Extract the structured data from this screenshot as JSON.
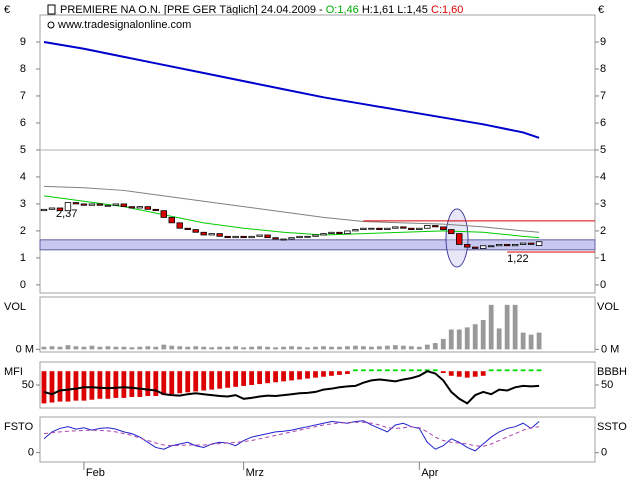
{
  "chart_data": {
    "type": "candlestick",
    "header": {
      "symbol": "PREMIERE NA O.N. [PRE GER  Täglich] 24.04.2009 - ",
      "open": "O:1,46",
      "high_low": " H:1,61 L:1,45 ",
      "close": "C:1,60",
      "open_color": "#00aa00",
      "close_color": "#dd0000"
    },
    "source": "www.tradesignalonline.com",
    "currency": "€",
    "xlim": [
      -0.5,
      69
    ],
    "xticks": [
      {
        "value": 5,
        "label": "Feb"
      },
      {
        "value": 25,
        "label": "Mrz"
      },
      {
        "value": 47,
        "label": "Apr"
      }
    ],
    "ylim": [
      -0.3,
      10
    ],
    "yticks": [
      0,
      1,
      2,
      3,
      4,
      5,
      6,
      7,
      8,
      9
    ],
    "up_color": "#ffffff",
    "down_color": "#dd0000",
    "open": [
      2.75,
      2.8,
      2.85,
      2.75,
      3.05,
      3.0,
      2.95,
      3.0,
      2.95,
      2.95,
      3.0,
      2.9,
      2.85,
      2.9,
      2.8,
      2.75,
      2.5,
      2.3,
      2.1,
      2.05,
      1.95,
      1.85,
      1.9,
      1.8,
      1.75,
      1.8,
      1.75,
      1.8,
      1.85,
      1.75,
      1.7,
      1.7,
      1.75,
      1.8,
      1.8,
      1.85,
      1.9,
      1.95,
      1.9,
      2.0,
      2.05,
      2.1,
      2.1,
      2.05,
      2.1,
      2.15,
      2.1,
      2.05,
      2.1,
      2.2,
      2.15,
      2.05,
      1.9,
      1.5,
      1.4,
      1.35,
      1.45,
      1.45,
      1.5,
      1.45,
      1.5,
      1.55,
      1.46
    ],
    "close": [
      2.8,
      2.85,
      2.75,
      3.05,
      3.0,
      2.95,
      3.0,
      2.95,
      2.95,
      3.0,
      2.9,
      2.85,
      2.9,
      2.8,
      2.75,
      2.5,
      2.3,
      2.1,
      2.05,
      1.95,
      1.85,
      1.9,
      1.8,
      1.75,
      1.8,
      1.75,
      1.8,
      1.85,
      1.75,
      1.7,
      1.7,
      1.75,
      1.8,
      1.8,
      1.85,
      1.9,
      1.95,
      1.9,
      2.0,
      2.05,
      2.1,
      2.1,
      2.05,
      2.1,
      2.15,
      2.1,
      2.05,
      2.1,
      2.2,
      2.15,
      2.05,
      1.9,
      1.5,
      1.4,
      1.35,
      1.45,
      1.45,
      1.5,
      1.45,
      1.5,
      1.55,
      1.5,
      1.6
    ],
    "moving_averages": [
      {
        "color": "#0000cc",
        "width": 2,
        "x": [
          0,
          5,
          10,
          15,
          20,
          25,
          30,
          35,
          40,
          45,
          50,
          55,
          60,
          62
        ],
        "values": [
          9.0,
          8.75,
          8.45,
          8.15,
          7.85,
          7.55,
          7.25,
          6.95,
          6.7,
          6.45,
          6.2,
          5.95,
          5.65,
          5.45
        ]
      },
      {
        "color": "#808080",
        "width": 1,
        "x": [
          0,
          5,
          10,
          15,
          20,
          25,
          30,
          35,
          40,
          45,
          50,
          55,
          60,
          62
        ],
        "values": [
          3.65,
          3.6,
          3.5,
          3.3,
          3.1,
          2.9,
          2.7,
          2.5,
          2.35,
          2.3,
          2.25,
          2.15,
          2.0,
          1.95
        ]
      },
      {
        "color": "#00cc00",
        "width": 1,
        "x": [
          0,
          5,
          10,
          15,
          20,
          25,
          30,
          35,
          40,
          45,
          50,
          55,
          60,
          62
        ],
        "values": [
          3.3,
          3.1,
          2.9,
          2.6,
          2.3,
          2.1,
          1.95,
          1.85,
          1.9,
          1.95,
          2.0,
          1.95,
          1.8,
          1.75
        ]
      }
    ],
    "reference_lines": [
      {
        "value": 5,
        "color": "#b0b0b0"
      }
    ],
    "band": {
      "range": [
        1.3,
        1.67
      ],
      "color": "#c8c8f0"
    },
    "levels": [
      {
        "value": 2.37,
        "label": "2,37",
        "color": "#dd0000",
        "from": 40
      },
      {
        "value": 1.22,
        "label": "1,22",
        "color": "#dd0000",
        "from": 58
      }
    ],
    "panels": [
      {
        "type": "bar",
        "label": "VOL",
        "right_label": "VOL",
        "color": "#999999",
        "ylim": [
          -0.05,
          1.0
        ],
        "yticks": [
          {
            "value": 0,
            "label": "0 M"
          }
        ],
        "values": [
          0.05,
          0.06,
          0.05,
          0.08,
          0.06,
          0.05,
          0.07,
          0.05,
          0.06,
          0.05,
          0.05,
          0.04,
          0.05,
          0.06,
          0.05,
          0.09,
          0.07,
          0.06,
          0.05,
          0.06,
          0.05,
          0.04,
          0.05,
          0.05,
          0.06,
          0.04,
          0.05,
          0.06,
          0.05,
          0.04,
          0.05,
          0.06,
          0.05,
          0.04,
          0.05,
          0.06,
          0.05,
          0.05,
          0.06,
          0.07,
          0.06,
          0.05,
          0.06,
          0.07,
          0.08,
          0.07,
          0.06,
          0.05,
          0.09,
          0.12,
          0.2,
          0.38,
          0.38,
          0.42,
          0.48,
          0.56,
          0.85,
          0.4,
          0.85,
          0.85,
          0.32,
          0.28,
          0.32
        ]
      },
      {
        "type": "histogram_line",
        "label": "MFI",
        "right_label": "BBBH",
        "ylim": [
          0,
          100
        ],
        "yticks": [
          50
        ],
        "histogram": {
          "ylim": [
            -40,
            10
          ],
          "pos_color": "#00dd00",
          "neg_color": "#dd0000",
          "values": [
            -35,
            -34,
            -33,
            -33,
            -32,
            -32,
            -31,
            -30,
            -30,
            -29,
            -29,
            -28,
            -28,
            -27,
            -27,
            -26,
            -25,
            -24,
            -23,
            -22,
            -21,
            -20,
            -19,
            -18,
            -17,
            -16,
            -15,
            -14,
            -13,
            -12,
            -11,
            -10,
            -9,
            -8,
            -7,
            -6,
            -5,
            -4,
            -3,
            2,
            2,
            2,
            2,
            2,
            2,
            2,
            2,
            2,
            2,
            2,
            -2,
            -5,
            -6,
            -7,
            -6,
            -5,
            2,
            2,
            2,
            2,
            2,
            2,
            2
          ]
        },
        "line": {
          "color": "#000000",
          "values": [
            35,
            30,
            38,
            40,
            42,
            45,
            45,
            44,
            43,
            44,
            45,
            44,
            42,
            40,
            38,
            30,
            28,
            27,
            30,
            32,
            30,
            28,
            26,
            25,
            28,
            20,
            22,
            25,
            27,
            26,
            28,
            30,
            32,
            33,
            35,
            40,
            42,
            45,
            47,
            48,
            55,
            60,
            62,
            60,
            58,
            62,
            65,
            70,
            80,
            75,
            60,
            35,
            20,
            10,
            28,
            35,
            30,
            40,
            38,
            45,
            48,
            47,
            48
          ]
        }
      },
      {
        "type": "line",
        "label": "FSTO",
        "right_label": "SSTO",
        "ylim": [
          -27,
          103
        ],
        "yticks": [
          0
        ],
        "series": [
          {
            "color": "#2222cc",
            "dashed": false,
            "values": [
              40,
              60,
              70,
              75,
              68,
              72,
              65,
              70,
              72,
              68,
              60,
              55,
              45,
              30,
              15,
              10,
              20,
              25,
              30,
              20,
              15,
              25,
              30,
              28,
              20,
              35,
              45,
              50,
              55,
              60,
              62,
              65,
              70,
              75,
              80,
              85,
              90,
              88,
              85,
              90,
              92,
              80,
              70,
              60,
              80,
              85,
              75,
              70,
              30,
              10,
              20,
              40,
              30,
              15,
              5,
              25,
              45,
              60,
              70,
              75,
              85,
              70,
              90
            ]
          },
          {
            "color": "#aa44aa",
            "dashed": true,
            "values": [
              55,
              58,
              60,
              62,
              63,
              64,
              65,
              64,
              63,
              60,
              55,
              50,
              42,
              35,
              28,
              22,
              20,
              21,
              22,
              22,
              22,
              24,
              26,
              28,
              30,
              32,
              35,
              40,
              45,
              50,
              55,
              60,
              65,
              70,
              75,
              80,
              83,
              86,
              87,
              88,
              88,
              85,
              80,
              72,
              70,
              72,
              75,
              72,
              60,
              45,
              35,
              30,
              28,
              25,
              20,
              18,
              25,
              35,
              45,
              55,
              65,
              72,
              75
            ]
          }
        ]
      }
    ]
  }
}
